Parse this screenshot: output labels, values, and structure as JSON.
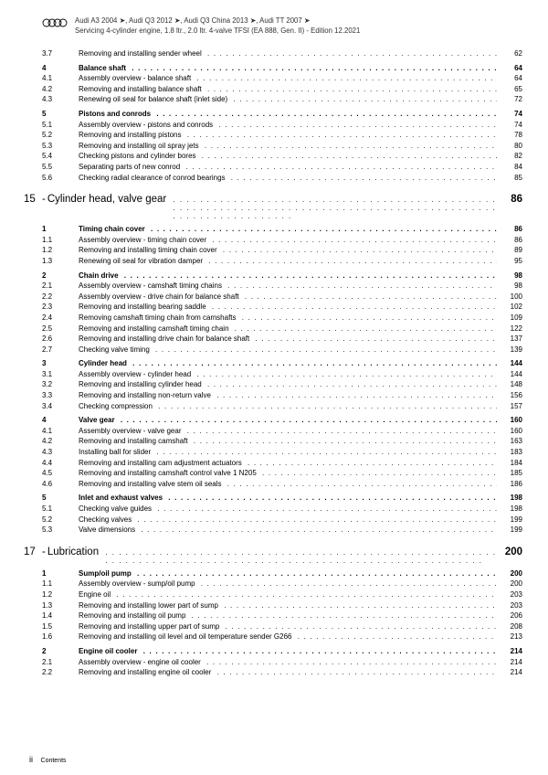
{
  "header": {
    "line1_parts": [
      "Audi A3 2004",
      "Audi Q3 2012",
      "Audi Q3 China 2013",
      "Audi TT 2007"
    ],
    "line2": "Servicing 4-cylinder engine, 1.8 ltr., 2.0 ltr. 4-valve TFSI (EA 888, Gen. II) - Edition 12.2021"
  },
  "toc": [
    {
      "type": "item",
      "num": "3.7",
      "title": "Removing and installing sender wheel",
      "page": "62"
    },
    {
      "type": "section",
      "num": "4",
      "title": "Balance shaft",
      "page": "64"
    },
    {
      "type": "item",
      "num": "4.1",
      "title": "Assembly overview - balance shaft",
      "page": "64"
    },
    {
      "type": "item",
      "num": "4.2",
      "title": "Removing and installing balance shaft",
      "page": "65"
    },
    {
      "type": "item",
      "num": "4.3",
      "title": "Renewing oil seal for balance shaft (inlet side)",
      "page": "72"
    },
    {
      "type": "section",
      "num": "5",
      "title": "Pistons and conrods",
      "page": "74"
    },
    {
      "type": "item",
      "num": "5.1",
      "title": "Assembly overview - pistons and conrods",
      "page": "74"
    },
    {
      "type": "item",
      "num": "5.2",
      "title": "Removing and installing pistons",
      "page": "78"
    },
    {
      "type": "item",
      "num": "5.3",
      "title": "Removing and installing oil spray jets",
      "page": "80"
    },
    {
      "type": "item",
      "num": "5.4",
      "title": "Checking pistons and cylinder bores",
      "page": "82"
    },
    {
      "type": "item",
      "num": "5.5",
      "title": "Separating parts of new conrod",
      "page": "84"
    },
    {
      "type": "item",
      "num": "5.6",
      "title": "Checking radial clearance of conrod bearings",
      "page": "85"
    },
    {
      "type": "chapter",
      "num": "15",
      "title": "Cylinder head, valve gear",
      "page": "86"
    },
    {
      "type": "section",
      "num": "1",
      "title": "Timing chain cover",
      "page": "86"
    },
    {
      "type": "item",
      "num": "1.1",
      "title": "Assembly overview - timing chain cover",
      "page": "86"
    },
    {
      "type": "item",
      "num": "1.2",
      "title": "Removing and installing timing chain cover",
      "page": "89"
    },
    {
      "type": "item",
      "num": "1.3",
      "title": "Renewing oil seal for vibration damper",
      "page": "95"
    },
    {
      "type": "section",
      "num": "2",
      "title": "Chain drive",
      "page": "98"
    },
    {
      "type": "item",
      "num": "2.1",
      "title": "Assembly overview - camshaft timing chains",
      "page": "98"
    },
    {
      "type": "item",
      "num": "2.2",
      "title": "Assembly overview - drive chain for balance shaft",
      "page": "100"
    },
    {
      "type": "item",
      "num": "2.3",
      "title": "Removing and installing bearing saddle",
      "page": "102"
    },
    {
      "type": "item",
      "num": "2.4",
      "title": "Removing camshaft timing chain from camshafts",
      "page": "109"
    },
    {
      "type": "item",
      "num": "2.5",
      "title": "Removing and installing camshaft timing chain",
      "page": "122"
    },
    {
      "type": "item",
      "num": "2.6",
      "title": "Removing and installing drive chain for balance shaft",
      "page": "137"
    },
    {
      "type": "item",
      "num": "2.7",
      "title": "Checking valve timing",
      "page": "139"
    },
    {
      "type": "section",
      "num": "3",
      "title": "Cylinder head",
      "page": "144"
    },
    {
      "type": "item",
      "num": "3.1",
      "title": "Assembly overview - cylinder head",
      "page": "144"
    },
    {
      "type": "item",
      "num": "3.2",
      "title": "Removing and installing cylinder head",
      "page": "148"
    },
    {
      "type": "item",
      "num": "3.3",
      "title": "Removing and installing non-return valve",
      "page": "156"
    },
    {
      "type": "item",
      "num": "3.4",
      "title": "Checking compression",
      "page": "157"
    },
    {
      "type": "section",
      "num": "4",
      "title": "Valve gear",
      "page": "160"
    },
    {
      "type": "item",
      "num": "4.1",
      "title": "Assembly overview - valve gear",
      "page": "160"
    },
    {
      "type": "item",
      "num": "4.2",
      "title": "Removing and installing camshaft",
      "page": "163"
    },
    {
      "type": "item",
      "num": "4.3",
      "title": "Installing ball for slider",
      "page": "183"
    },
    {
      "type": "item",
      "num": "4.4",
      "title": "Removing and installing cam adjustment actuators",
      "page": "184"
    },
    {
      "type": "item",
      "num": "4.5",
      "title": "Removing and installing camshaft control valve 1 N205",
      "page": "185"
    },
    {
      "type": "item",
      "num": "4.6",
      "title": "Removing and installing valve stem oil seals",
      "page": "186"
    },
    {
      "type": "section",
      "num": "5",
      "title": "Inlet and exhaust valves",
      "page": "198"
    },
    {
      "type": "item",
      "num": "5.1",
      "title": "Checking valve guides",
      "page": "198"
    },
    {
      "type": "item",
      "num": "5.2",
      "title": "Checking valves",
      "page": "199"
    },
    {
      "type": "item",
      "num": "5.3",
      "title": "Valve dimensions",
      "page": "199"
    },
    {
      "type": "chapter",
      "num": "17",
      "title": "Lubrication",
      "page": "200"
    },
    {
      "type": "section",
      "num": "1",
      "title": "Sump/oil pump",
      "page": "200"
    },
    {
      "type": "item",
      "num": "1.1",
      "title": "Assembly overview - sump/oil pump",
      "page": "200"
    },
    {
      "type": "item",
      "num": "1.2",
      "title": "Engine oil",
      "page": "203"
    },
    {
      "type": "item",
      "num": "1.3",
      "title": "Removing and installing lower part of sump",
      "page": "203"
    },
    {
      "type": "item",
      "num": "1.4",
      "title": "Removing and installing oil pump",
      "page": "206"
    },
    {
      "type": "item",
      "num": "1.5",
      "title": "Removing and installing upper part of sump",
      "page": "208"
    },
    {
      "type": "item",
      "num": "1.6",
      "title": "Removing and installing oil level and oil temperature sender G266",
      "page": "213"
    },
    {
      "type": "section",
      "num": "2",
      "title": "Engine oil cooler",
      "page": "214"
    },
    {
      "type": "item",
      "num": "2.1",
      "title": "Assembly overview - engine oil cooler",
      "page": "214"
    },
    {
      "type": "item",
      "num": "2.2",
      "title": "Removing and installing engine oil cooler",
      "page": "214"
    }
  ],
  "footer": {
    "page_num": "ii",
    "label": "Contents"
  }
}
